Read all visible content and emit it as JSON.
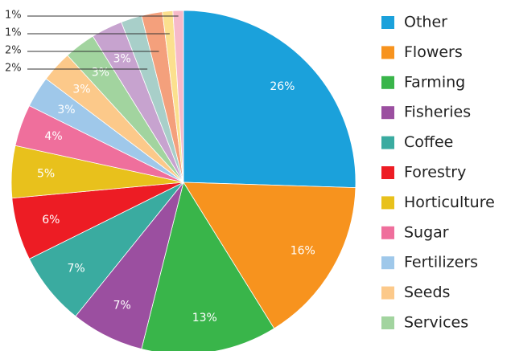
{
  "chart_data": {
    "type": "pie",
    "categories": [
      "Other",
      "Flowers",
      "Farming",
      "Fisheries",
      "Coffee",
      "Forestry",
      "Horticulture",
      "Sugar",
      "Fertilizers",
      "Seeds",
      "Services",
      null,
      null,
      null,
      null,
      null
    ],
    "values": [
      26,
      16,
      13,
      7,
      7,
      6,
      5,
      4,
      3,
      3,
      3,
      3,
      2,
      2,
      1,
      1
    ],
    "value_labels": [
      "26%",
      "16%",
      "13%",
      "7%",
      "7%",
      "6%",
      "5%",
      "4%",
      "3%",
      "3%",
      "3%",
      "3%",
      "2%",
      "2%",
      "1%",
      "1%"
    ],
    "colors": [
      "#1ba1db",
      "#f7931e",
      "#39b54a",
      "#9b4fa0",
      "#3aaba0",
      "#ed1c24",
      "#e8c11c",
      "#ef6f9c",
      "#9fc8ea",
      "#fcc98a",
      "#a2d49f",
      "#c7a3cf",
      "#a8cfc9",
      "#f4a07c",
      "#fbe08e",
      "#f6b9c9"
    ],
    "legend": "right"
  }
}
